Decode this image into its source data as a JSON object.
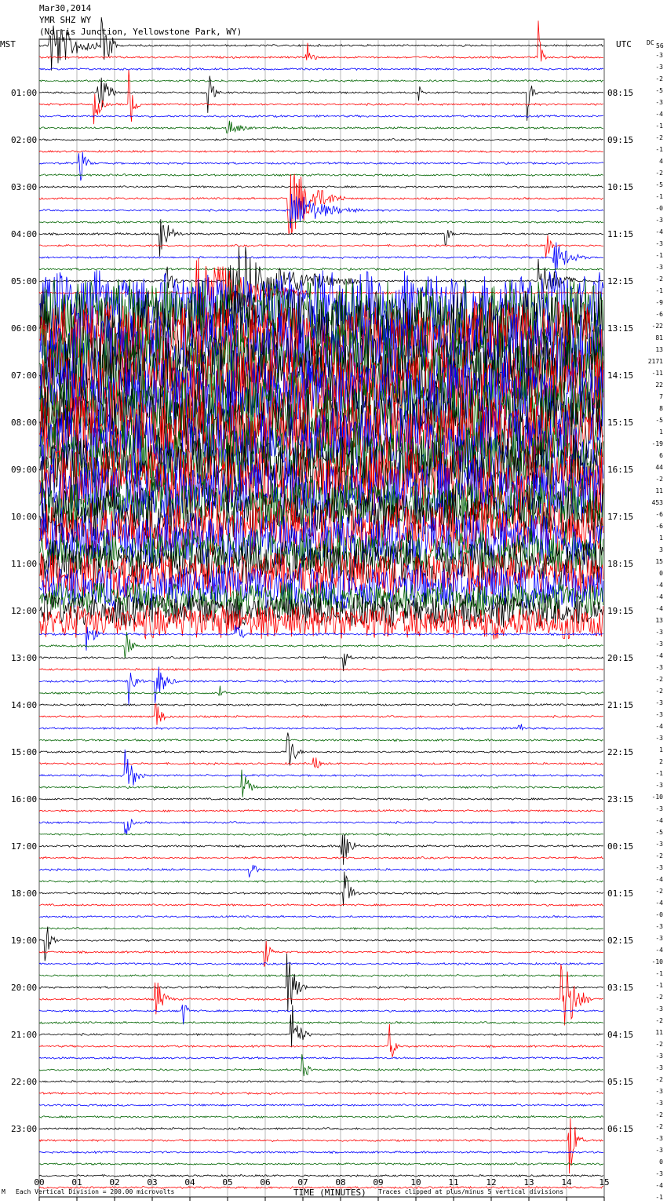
{
  "header": {
    "date": "Mar30,2014",
    "station": "YMR SHZ WY",
    "location": "(Norris Junction, Yellowstone Park, WY)"
  },
  "axis": {
    "left_title": "MST",
    "right_title": "UTC",
    "dc_label": "DC",
    "dc_sub": "56",
    "x_title": "TIME (MINUTES)",
    "x_ticks": [
      "00",
      "01",
      "02",
      "03",
      "04",
      "05",
      "06",
      "07",
      "08",
      "09",
      "10",
      "11",
      "12",
      "13",
      "14",
      "15"
    ]
  },
  "footer": {
    "corner": "M",
    "division": "Each Vertical Division =  200.00 microvolts",
    "clip_note": "Traces clipped at plus/minus 5 vertical divisions"
  },
  "colors": {
    "trace_cycle": [
      "#000000",
      "#ff0000",
      "#0000ff",
      "#006400"
    ],
    "grid": "#888888"
  },
  "chart_data": {
    "type": "line",
    "title": "Mar30,2014",
    "x_range_minutes": [
      0,
      15
    ],
    "rows_per_hour": 4,
    "hour_labels_mst": [
      "01:00",
      "02:00",
      "03:00",
      "04:00",
      "05:00",
      "06:00",
      "07:00",
      "08:00",
      "09:00",
      "10:00",
      "11:00",
      "12:00",
      "13:00",
      "14:00",
      "15:00",
      "16:00",
      "17:00",
      "18:00",
      "19:00",
      "20:00",
      "21:00",
      "22:00",
      "23:00"
    ],
    "hour_labels_utc": [
      "08:15",
      "09:15",
      "10:15",
      "11:15",
      "12:15",
      "13:15",
      "14:15",
      "15:15",
      "16:15",
      "17:15",
      "18:15",
      "19:15",
      "20:15",
      "21:15",
      "22:15",
      "23:15",
      "00:15",
      "01:15",
      "02:15",
      "03:15",
      "04:15",
      "05:15",
      "06:15"
    ],
    "dc_offsets": [
      "-3",
      "-3",
      "-2",
      "-5",
      "-3",
      "-4",
      "-1",
      "-2",
      "-1",
      "4",
      "-2",
      "-5",
      "-1",
      "-0",
      "-3",
      "-4",
      "-3",
      "-1",
      "-3",
      "-2",
      "-1",
      "-9",
      "-6",
      "-22",
      "81",
      "13",
      "2171",
      "-11",
      "22",
      "7",
      "8",
      "-5",
      "1",
      "-19",
      "6",
      "44",
      "-2",
      "11",
      "453",
      "-6",
      "-6",
      "1",
      "3",
      "15",
      "0",
      "-4",
      "-4",
      "-4",
      "13",
      "-3",
      "-3",
      "-4",
      "-3",
      "-2",
      "-2",
      "-3",
      "-3",
      "-4",
      "-3",
      "1",
      "2",
      "-1",
      "-3",
      "-10",
      "-3",
      "-4",
      "-5",
      "-3",
      "-2",
      "-3",
      "-4",
      "-2",
      "-4",
      "-0",
      "-3",
      "-3",
      "-4",
      "-10",
      "-1",
      "-1",
      "-2",
      "-3",
      "-2",
      "11",
      "-2",
      "-3",
      "-3",
      "-2",
      "-3",
      "-3",
      "-2",
      "-2",
      "-3",
      "-3",
      "0",
      "-3",
      "-4",
      "-1"
    ],
    "events": [
      {
        "row": 0,
        "minute": 0.3,
        "amp": 6,
        "dur": 1.5
      },
      {
        "row": 0,
        "minute": 1.7,
        "amp": 9,
        "dur": 0.4
      },
      {
        "row": 1,
        "minute": 7.1,
        "amp": 5,
        "dur": 0.3
      },
      {
        "row": 1,
        "minute": 13.3,
        "amp": 3,
        "dur": 0.2
      },
      {
        "row": 4,
        "minute": 1.6,
        "amp": 4,
        "dur": 0.6
      },
      {
        "row": 4,
        "minute": 4.5,
        "amp": 4,
        "dur": 0.3
      },
      {
        "row": 4,
        "minute": 10.1,
        "amp": 2,
        "dur": 0.3
      },
      {
        "row": 4,
        "minute": 13.0,
        "amp": 3,
        "dur": 0.3
      },
      {
        "row": 5,
        "minute": 1.5,
        "amp": 3,
        "dur": 0.4
      },
      {
        "row": 5,
        "minute": 2.4,
        "amp": 5,
        "dur": 0.3
      },
      {
        "row": 7,
        "minute": 5.0,
        "amp": 1.5,
        "dur": 1.0
      },
      {
        "row": 10,
        "minute": 1.1,
        "amp": 3,
        "dur": 0.4
      },
      {
        "row": 13,
        "minute": 6.6,
        "amp": 9,
        "dur": 1.5
      },
      {
        "row": 14,
        "minute": 6.7,
        "amp": 4,
        "dur": 2.0
      },
      {
        "row": 16,
        "minute": 3.2,
        "amp": 5,
        "dur": 0.6
      },
      {
        "row": 16,
        "minute": 10.8,
        "amp": 2,
        "dur": 0.3
      },
      {
        "row": 17,
        "minute": 13.5,
        "amp": 2,
        "dur": 0.3
      },
      {
        "row": 18,
        "minute": 13.7,
        "amp": 3,
        "dur": 1.0
      },
      {
        "row": 20,
        "minute": 3.4,
        "amp": 3,
        "dur": 0.5
      },
      {
        "row": 20,
        "minute": 5.0,
        "amp": 9,
        "dur": 3.5
      },
      {
        "row": 20,
        "minute": 13.3,
        "amp": 4,
        "dur": 1.3
      },
      {
        "row": 21,
        "minute": 4.2,
        "amp": 9,
        "dur": 3.0
      },
      {
        "row": 22,
        "minute": 0.1,
        "amp": 6,
        "dur": 15
      },
      {
        "row": 23,
        "minute": 0.1,
        "amp": 7,
        "dur": 15
      },
      {
        "row": 24,
        "minute": 0.1,
        "amp": 8,
        "dur": 15
      },
      {
        "row": 25,
        "minute": 0.1,
        "amp": 8,
        "dur": 15
      },
      {
        "row": 26,
        "minute": 0.1,
        "amp": 8,
        "dur": 15
      },
      {
        "row": 27,
        "minute": 0.1,
        "amp": 8,
        "dur": 15
      },
      {
        "row": 28,
        "minute": 0.1,
        "amp": 8,
        "dur": 15
      },
      {
        "row": 29,
        "minute": 0.1,
        "amp": 8,
        "dur": 15
      },
      {
        "row": 30,
        "minute": 0.1,
        "amp": 8,
        "dur": 15
      },
      {
        "row": 31,
        "minute": 0.1,
        "amp": 7,
        "dur": 15
      },
      {
        "row": 32,
        "minute": 0.1,
        "amp": 7,
        "dur": 15
      },
      {
        "row": 33,
        "minute": 0.1,
        "amp": 7,
        "dur": 15
      },
      {
        "row": 34,
        "minute": 0.1,
        "amp": 7,
        "dur": 15
      },
      {
        "row": 35,
        "minute": 0.1,
        "amp": 6,
        "dur": 15
      },
      {
        "row": 36,
        "minute": 0.1,
        "amp": 6,
        "dur": 15
      },
      {
        "row": 37,
        "minute": 0.1,
        "amp": 6,
        "dur": 15
      },
      {
        "row": 38,
        "minute": 0.1,
        "amp": 6,
        "dur": 15
      },
      {
        "row": 39,
        "minute": 0.1,
        "amp": 5,
        "dur": 15
      },
      {
        "row": 40,
        "minute": 0.1,
        "amp": 5,
        "dur": 15
      },
      {
        "row": 41,
        "minute": 0.1,
        "amp": 5,
        "dur": 15
      },
      {
        "row": 42,
        "minute": 0.1,
        "amp": 5,
        "dur": 15
      },
      {
        "row": 43,
        "minute": 0.1,
        "amp": 4,
        "dur": 15
      },
      {
        "row": 44,
        "minute": 0.1,
        "amp": 4,
        "dur": 15
      },
      {
        "row": 45,
        "minute": 0.1,
        "amp": 4,
        "dur": 15
      },
      {
        "row": 46,
        "minute": 0.1,
        "amp": 4,
        "dur": 15
      },
      {
        "row": 47,
        "minute": 0.1,
        "amp": 3,
        "dur": 15
      },
      {
        "row": 48,
        "minute": 0.1,
        "amp": 3,
        "dur": 15
      },
      {
        "row": 49,
        "minute": 0.1,
        "amp": 3,
        "dur": 15
      },
      {
        "row": 50,
        "minute": 1.3,
        "amp": 3,
        "dur": 0.4
      },
      {
        "row": 50,
        "minute": 5.2,
        "amp": 3,
        "dur": 0.4
      },
      {
        "row": 51,
        "minute": 2.3,
        "amp": 3,
        "dur": 0.4
      },
      {
        "row": 52,
        "minute": 8.1,
        "amp": 2,
        "dur": 0.3
      },
      {
        "row": 54,
        "minute": 2.4,
        "amp": 4,
        "dur": 0.4
      },
      {
        "row": 54,
        "minute": 3.1,
        "amp": 4,
        "dur": 0.6
      },
      {
        "row": 55,
        "minute": 4.8,
        "amp": 2,
        "dur": 0.3
      },
      {
        "row": 57,
        "minute": 3.1,
        "amp": 3,
        "dur": 0.4
      },
      {
        "row": 58,
        "minute": 12.7,
        "amp": 2,
        "dur": 0.3
      },
      {
        "row": 60,
        "minute": 6.6,
        "amp": 5,
        "dur": 0.4
      },
      {
        "row": 61,
        "minute": 7.3,
        "amp": 2,
        "dur": 0.3
      },
      {
        "row": 62,
        "minute": 2.3,
        "amp": 6,
        "dur": 0.5
      },
      {
        "row": 63,
        "minute": 5.4,
        "amp": 3,
        "dur": 0.5
      },
      {
        "row": 66,
        "minute": 2.3,
        "amp": 3,
        "dur": 0.3
      },
      {
        "row": 68,
        "minute": 8.0,
        "amp": 6,
        "dur": 0.5
      },
      {
        "row": 70,
        "minute": 5.6,
        "amp": 3,
        "dur": 0.3
      },
      {
        "row": 72,
        "minute": 8.1,
        "amp": 5,
        "dur": 0.4
      },
      {
        "row": 76,
        "minute": 0.2,
        "amp": 3,
        "dur": 0.4
      },
      {
        "row": 77,
        "minute": 6.0,
        "amp": 3,
        "dur": 0.3
      },
      {
        "row": 80,
        "minute": 6.6,
        "amp": 7,
        "dur": 0.5
      },
      {
        "row": 81,
        "minute": 3.1,
        "amp": 4,
        "dur": 0.5
      },
      {
        "row": 81,
        "minute": 13.9,
        "amp": 9,
        "dur": 0.8
      },
      {
        "row": 82,
        "minute": 3.8,
        "amp": 3,
        "dur": 0.3
      },
      {
        "row": 84,
        "minute": 6.7,
        "amp": 6,
        "dur": 0.5
      },
      {
        "row": 85,
        "minute": 9.3,
        "amp": 4,
        "dur": 0.3
      },
      {
        "row": 87,
        "minute": 7.0,
        "amp": 3,
        "dur": 0.3
      },
      {
        "row": 93,
        "minute": 14.1,
        "amp": 6,
        "dur": 0.4
      }
    ]
  }
}
